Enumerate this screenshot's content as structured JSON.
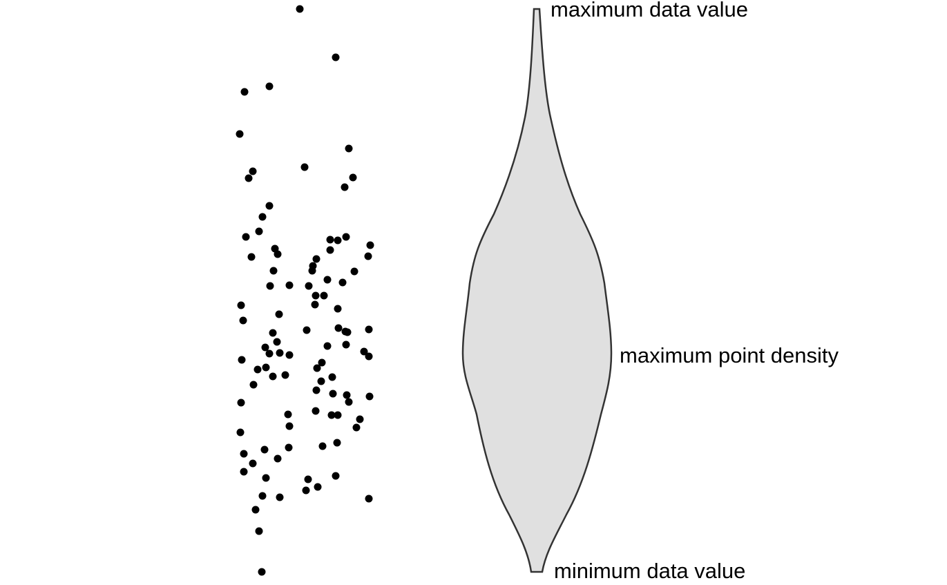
{
  "annotations": {
    "max_value": "maximum data value",
    "max_density": "maximum point density",
    "min_value": "minimum data value"
  }
}
